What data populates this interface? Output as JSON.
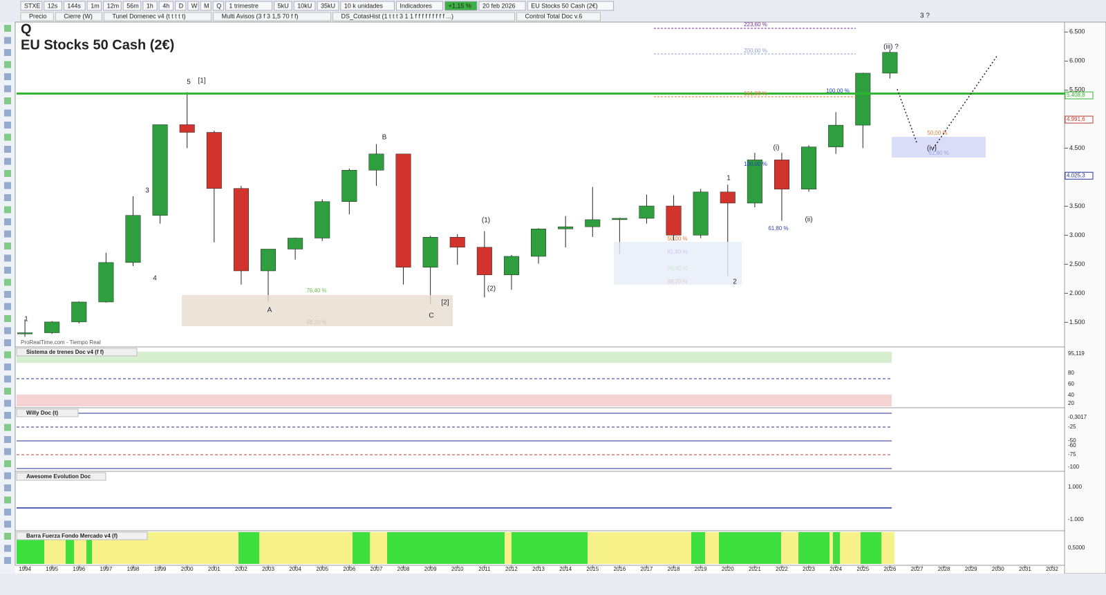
{
  "toolbar": {
    "row1": [
      "STXE",
      "12s",
      "144s",
      "1m",
      "12m",
      "56m",
      "1h",
      "4h",
      "D",
      "W",
      "M",
      "Q",
      "1 trimestre",
      "5kU",
      "10kU",
      "35kU",
      "10 k unidades",
      "Indicadores",
      "+1,15 %",
      "20 feb 2026",
      "EU Stocks 50 Cash (2€)"
    ],
    "row2": [
      "Precio",
      "Cierre (W)",
      "Tunel Domenec v4 (t t t t t)",
      "Multi Avisos (3 f 3 1,5 70 f f)",
      "DS_CotasHist (1 t t t 3 1 1 f f f f f f f f f ...)",
      "Control Total Doc v.6"
    ]
  },
  "chart_data": {
    "type": "candlestick",
    "title": "Q",
    "subtitle": "EU Stocks 50 Cash (2€)",
    "x": [
      1994,
      1995,
      1996,
      1997,
      1998,
      1999,
      2000,
      2001,
      2002,
      2003,
      2004,
      2005,
      2006,
      2007,
      2008,
      2009,
      2010,
      2011,
      2012,
      2013,
      2014,
      2015,
      2016,
      2017,
      2018,
      2019,
      2020,
      2021,
      2022,
      2023,
      2024,
      2025,
      2026
    ],
    "open": [
      1300,
      1320,
      1506,
      1850,
      2530,
      3342,
      4904,
      4772,
      3806,
      2386,
      2761,
      2951,
      3579,
      4120,
      4400,
      2448,
      2966,
      2793,
      2317,
      2636,
      3109,
      3146,
      3268,
      3291,
      3504,
      3001,
      3745,
      3553,
      4298,
      3794,
      4521,
      4896,
      5791
    ],
    "high": [
      1550,
      1520,
      1860,
      2700,
      3670,
      4900,
      5464,
      4800,
      3850,
      2760,
      2960,
      3620,
      4150,
      4570,
      4400,
      2990,
      3020,
      3070,
      2660,
      3120,
      3330,
      3830,
      3300,
      3700,
      3690,
      3800,
      3870,
      4420,
      4420,
      4550,
      5120,
      5800,
      6200
    ],
    "low": [
      1250,
      1300,
      1480,
      1840,
      2470,
      3200,
      4500,
      2877,
      2150,
      1850,
      2580,
      2900,
      3360,
      3850,
      2150,
      1810,
      2490,
      1930,
      2060,
      2510,
      2790,
      2970,
      2680,
      3200,
      2910,
      2950,
      2300,
      3480,
      3250,
      3750,
      4400,
      4500,
      5700
    ],
    "close": [
      1320,
      1506,
      1850,
      2530,
      3342,
      4904,
      4772,
      3806,
      2386,
      2761,
      2951,
      3579,
      4120,
      4400,
      2448,
      2966,
      2793,
      2317,
      2636,
      3109,
      3146,
      3268,
      3291,
      3504,
      3001,
      3745,
      3553,
      4298,
      3794,
      4521,
      4896,
      5791,
      6150
    ],
    "up_color": "#2e9e3e",
    "down_color": "#d0342c",
    "xlim": [
      1993.64,
      2032.46
    ],
    "xticks": [
      1994,
      1995,
      1996,
      1997,
      1998,
      1999,
      2000,
      2001,
      2002,
      2003,
      2004,
      2005,
      2006,
      2007,
      2008,
      2009,
      2010,
      2011,
      2012,
      2013,
      2014,
      2015,
      2016,
      2017,
      2018,
      2019,
      2020,
      2021,
      2022,
      2023,
      2024,
      2025,
      2026,
      2027,
      2028,
      2029,
      2030,
      2031,
      2032
    ],
    "ylim": [
      1100,
      6790
    ],
    "yticks": [
      {
        "value": 1500,
        "label": "1.500"
      },
      {
        "value": 2000,
        "label": "2.000"
      },
      {
        "value": 2500,
        "label": "2.500"
      },
      {
        "value": 3000,
        "label": "3.000"
      },
      {
        "value": 3500,
        "label": "3.500"
      },
      {
        "value": 4500,
        "label": "4.500"
      },
      {
        "value": 5500,
        "label": "5.500"
      },
      {
        "value": 6000,
        "label": "6.000"
      },
      {
        "value": 6500,
        "label": "6.500"
      }
    ],
    "level": 5440,
    "level_color": "#2db52d",
    "price_labels": [
      {
        "value": 5408.8,
        "label": "5.408,8",
        "color": "#2db52d"
      },
      {
        "value": 4991.6,
        "label": "4.991,6",
        "color": "#c0392b"
      },
      {
        "value": 4025.3,
        "label": "4.025,3",
        "color": "#1f2f9a"
      }
    ]
  },
  "annotations": {
    "fib": [
      "223,60 %",
      "200,00 %",
      "161,80 %",
      "100,00 %",
      "100,00 %",
      "76,40 %",
      "88,20 %",
      "61,80 %",
      "50,00 %",
      "76,40 %",
      "88,20 %",
      "61,80 %",
      "50,00 %",
      "61,80 %"
    ],
    "waves": [
      "[1]",
      "[2]",
      "(1)",
      "(2)",
      "1",
      "2",
      "(i)",
      "(ii)",
      "(iii) ?",
      "(iv)",
      "3 ?",
      "5",
      "3",
      "4",
      "A",
      "B",
      "C",
      "1"
    ]
  },
  "panels": [
    {
      "title": "Sistema de trenes Doc v4 (f f)",
      "ticks": [
        "95,119",
        "80",
        "60",
        "40",
        "20"
      ]
    },
    {
      "title": "Willy Doc (t)",
      "ticks": [
        "-0,3017",
        "-25",
        "-50",
        "-60",
        "-75",
        "-100"
      ]
    },
    {
      "title": "Awesome Evolution Doc",
      "ticks": [
        "1.000",
        "-1.000"
      ]
    },
    {
      "title": "Barra Fuerza Fondo Mercado v4 (f)",
      "ticks": [
        "0,5000"
      ]
    }
  ],
  "watermark": "ProRealTime.com - Tiempo Real"
}
